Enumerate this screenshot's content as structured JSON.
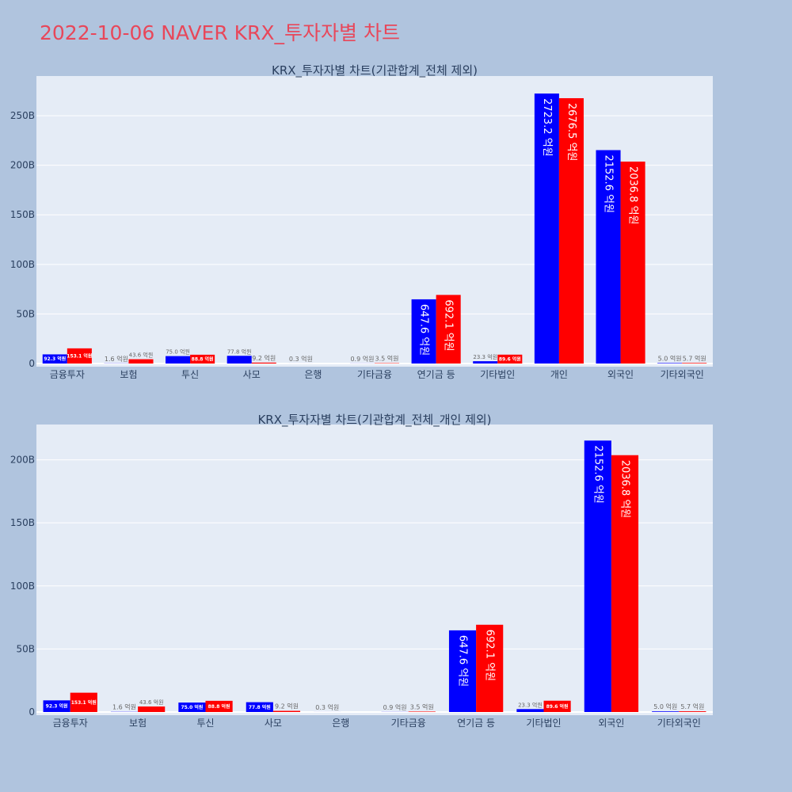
{
  "page": {
    "title": "2022-10-06 NAVER KRX_투자자별 차트"
  },
  "colors": {
    "background": "#b0c4de",
    "plot_bg": "#e5ecf6",
    "series_1": "#0000ff",
    "series_2": "#ff0000",
    "title": "#e8475a"
  },
  "chart_data": [
    {
      "type": "bar",
      "title": "KRX_투자자별 차트(기관합계_전체 제외)",
      "xlabel": "",
      "ylabel": "",
      "ylim": [
        0,
        290
      ],
      "y_unit": "B",
      "yticks": [
        {
          "value": 0,
          "label": "0"
        },
        {
          "value": 50,
          "label": "50B"
        },
        {
          "value": 100,
          "label": "100B"
        },
        {
          "value": 150,
          "label": "150B"
        },
        {
          "value": 200,
          "label": "200B"
        },
        {
          "value": 250,
          "label": "250B"
        }
      ],
      "grid": true,
      "categories": [
        "금융투자",
        "보험",
        "투신",
        "사모",
        "은행",
        "기타금융",
        "연기금 등",
        "기타법인",
        "개인",
        "외국인",
        "기타외국인"
      ],
      "series": [
        {
          "color": "#0000ff",
          "values": [
            9.23,
            0.16,
            7.5,
            7.78,
            0.03,
            0.09,
            64.76,
            2.33,
            272.32,
            215.26,
            0.5
          ],
          "labels": [
            "92.3 억원",
            "1.6 억원",
            "75.0 억원",
            "77.8 억원",
            "0.3 억원",
            "0.9 억원",
            "647.6 억원",
            "23.3 억원",
            "2723.2 억원",
            "2152.6 억원",
            "5.0 억원"
          ]
        },
        {
          "color": "#ff0000",
          "values": [
            15.31,
            4.36,
            8.88,
            0.92,
            0.0,
            0.35,
            69.21,
            8.96,
            267.65,
            203.68,
            0.57
          ],
          "labels": [
            "153.1 억원",
            "43.6 억원",
            "88.8 억원",
            "9.2 억원",
            "",
            "3.5 억원",
            "692.1 억원",
            "89.6 억원",
            "2676.5 억원",
            "2036.8 억원",
            "5.7 억원"
          ]
        }
      ]
    },
    {
      "type": "bar",
      "title": "KRX_투자자별 차트(기관합계_전체_개인 제외)",
      "xlabel": "",
      "ylabel": "",
      "ylim": [
        0,
        228
      ],
      "y_unit": "B",
      "yticks": [
        {
          "value": 0,
          "label": "0"
        },
        {
          "value": 50,
          "label": "50B"
        },
        {
          "value": 100,
          "label": "100B"
        },
        {
          "value": 150,
          "label": "150B"
        },
        {
          "value": 200,
          "label": "200B"
        }
      ],
      "grid": true,
      "categories": [
        "금융투자",
        "보험",
        "투신",
        "사모",
        "은행",
        "기타금융",
        "연기금 등",
        "기타법인",
        "외국인",
        "기타외국인"
      ],
      "series": [
        {
          "color": "#0000ff",
          "values": [
            9.23,
            0.16,
            7.5,
            7.78,
            0.03,
            0.09,
            64.76,
            2.33,
            215.26,
            0.5
          ],
          "labels": [
            "92.3 억원",
            "1.6 억원",
            "75.0 억원",
            "77.8 억원",
            "0.3 억원",
            "0.9 억원",
            "647.6 억원",
            "23.3 억원",
            "2152.6 억원",
            "5.0 억원"
          ]
        },
        {
          "color": "#ff0000",
          "values": [
            15.31,
            4.36,
            8.88,
            0.92,
            0.0,
            0.35,
            69.21,
            8.96,
            203.68,
            0.57
          ],
          "labels": [
            "153.1 억원",
            "43.6 억원",
            "88.8 억원",
            "9.2 억원",
            "",
            "3.5 억원",
            "692.1 억원",
            "89.6 억원",
            "2036.8 억원",
            "5.7 억원"
          ]
        }
      ]
    }
  ]
}
